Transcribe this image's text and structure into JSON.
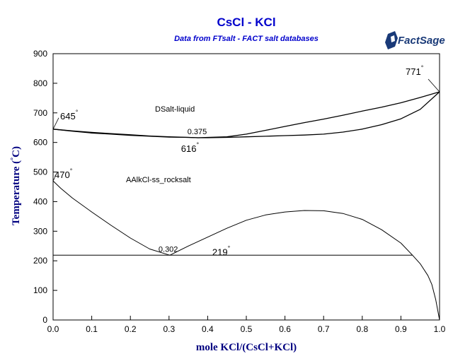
{
  "chart_data": {
    "type": "line",
    "title": "CsCl - KCl",
    "subtitle": "Data from FTsalt - FACT salt databases",
    "xlabel": "mole KCl/(CsCl+KCl)",
    "ylabel": "Temperature (°C)",
    "ylabel_parts": [
      "Temperature (",
      "°",
      "C)"
    ],
    "xlim": [
      0,
      1
    ],
    "ylim": [
      0,
      900
    ],
    "xticks": [
      "0.0",
      "0.1",
      "0.2",
      "0.3",
      "0.4",
      "0.5",
      "0.6",
      "0.7",
      "0.8",
      "0.9",
      "1.0"
    ],
    "yticks": [
      "0",
      "100",
      "200",
      "300",
      "400",
      "500",
      "600",
      "700",
      "800",
      "900"
    ],
    "grid": false,
    "logo": "FactSage",
    "phase_labels": [
      "DSalt-liquid",
      "AAlkCl-ss_rocksalt"
    ],
    "annotations": [
      {
        "text": "645",
        "deg": "°",
        "x": 0.0,
        "y": 645
      },
      {
        "text": "771",
        "deg": "°",
        "x": 1.0,
        "y": 771
      },
      {
        "text": "616",
        "deg": "°",
        "x": 0.375,
        "y": 616
      },
      {
        "text": "0.375",
        "x": 0.375,
        "y": 616
      },
      {
        "text": "470",
        "deg": "°",
        "x": 0.0,
        "y": 470
      },
      {
        "text": "219",
        "deg": "°",
        "x": 0.302,
        "y": 219
      },
      {
        "text": "0.302",
        "x": 0.302,
        "y": 219
      }
    ],
    "series": [
      {
        "x": [
          0.0,
          0.05,
          0.1,
          0.15,
          0.2,
          0.25,
          0.3,
          0.35,
          0.375,
          0.4,
          0.45,
          0.5,
          0.55,
          0.6,
          0.65,
          0.7,
          0.75,
          0.8,
          0.85,
          0.9,
          0.95,
          1.0
        ],
        "y": [
          645,
          639,
          634,
          630,
          626,
          622,
          619,
          617,
          616,
          617,
          619,
          628,
          641,
          654,
          667,
          679,
          692,
          706,
          719,
          734,
          752,
          771
        ]
      },
      {
        "x": [
          0.0,
          0.05,
          0.1,
          0.15,
          0.2,
          0.25,
          0.3,
          0.35,
          0.375,
          0.4,
          0.45,
          0.5,
          0.55,
          0.6,
          0.65,
          0.7,
          0.75,
          0.8,
          0.85,
          0.9,
          0.95,
          1.0
        ],
        "y": [
          645,
          638,
          632,
          628,
          624,
          621,
          618,
          617,
          616,
          616,
          617,
          619,
          621,
          623,
          625,
          628,
          635,
          645,
          660,
          680,
          712,
          771
        ]
      },
      {
        "x": [
          0.0,
          0.02,
          0.05,
          0.1,
          0.15,
          0.2,
          0.25,
          0.302
        ],
        "y": [
          470,
          445,
          412,
          365,
          320,
          277,
          240,
          219
        ]
      },
      {
        "x": [
          0.302,
          0.35,
          0.4,
          0.45,
          0.5,
          0.55,
          0.6,
          0.65,
          0.7,
          0.75,
          0.8,
          0.85,
          0.9,
          0.93
        ],
        "y": [
          219,
          250,
          280,
          310,
          337,
          355,
          365,
          370,
          369,
          360,
          340,
          305,
          260,
          219
        ]
      },
      {
        "x": [
          0.0,
          0.93
        ],
        "y": [
          219,
          219
        ]
      },
      {
        "x": [
          0.93,
          0.95,
          0.97,
          0.98,
          0.99,
          1.0
        ],
        "y": [
          219,
          190,
          150,
          120,
          70,
          0
        ]
      }
    ]
  }
}
